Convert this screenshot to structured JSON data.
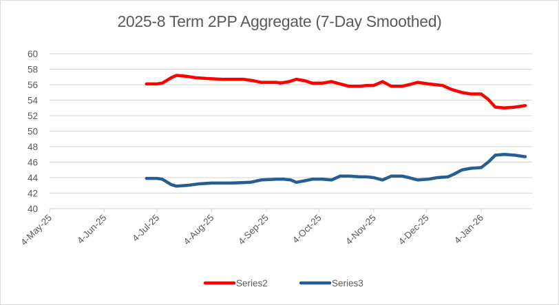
{
  "chart_data": {
    "type": "line",
    "title": "2025-8 Term 2PP Aggregate (7-Day Smoothed)",
    "xlabel": "",
    "ylabel": "",
    "ylim": [
      40,
      60
    ],
    "yticks": [
      40,
      42,
      44,
      46,
      48,
      50,
      52,
      54,
      56,
      58,
      60
    ],
    "xlim": [
      "2025-05-04",
      "2026-02-03"
    ],
    "xticks": [
      {
        "date": "2025-05-04",
        "label": "4-May-25"
      },
      {
        "date": "2025-06-04",
        "label": "4-Jun-25"
      },
      {
        "date": "2025-07-04",
        "label": "4-Jul-25"
      },
      {
        "date": "2025-08-04",
        "label": "4-Aug-25"
      },
      {
        "date": "2025-09-04",
        "label": "4-Sep-25"
      },
      {
        "date": "2025-10-04",
        "label": "4-Oct-25"
      },
      {
        "date": "2025-11-04",
        "label": "4-Nov-25"
      },
      {
        "date": "2025-12-04",
        "label": "4-Dec-25"
      },
      {
        "date": "2026-01-04",
        "label": "4-Jan-26"
      }
    ],
    "grid": true,
    "legend": "bottom",
    "series": [
      {
        "name": "Series2",
        "color": "#ff0000",
        "points": [
          [
            "2025-06-28",
            56.1
          ],
          [
            "2025-07-04",
            56.1
          ],
          [
            "2025-07-07",
            56.2
          ],
          [
            "2025-07-12",
            56.9
          ],
          [
            "2025-07-15",
            57.2
          ],
          [
            "2025-07-20",
            57.1
          ],
          [
            "2025-07-26",
            56.9
          ],
          [
            "2025-08-01",
            56.8
          ],
          [
            "2025-08-10",
            56.7
          ],
          [
            "2025-08-22",
            56.7
          ],
          [
            "2025-08-28",
            56.5
          ],
          [
            "2025-09-01",
            56.3
          ],
          [
            "2025-09-10",
            56.3
          ],
          [
            "2025-09-12",
            56.2
          ],
          [
            "2025-09-17",
            56.4
          ],
          [
            "2025-09-21",
            56.7
          ],
          [
            "2025-09-26",
            56.5
          ],
          [
            "2025-09-30",
            56.2
          ],
          [
            "2025-10-06",
            56.2
          ],
          [
            "2025-10-11",
            56.4
          ],
          [
            "2025-10-16",
            56.1
          ],
          [
            "2025-10-21",
            55.8
          ],
          [
            "2025-10-27",
            55.8
          ],
          [
            "2025-10-31",
            55.9
          ],
          [
            "2025-11-04",
            55.9
          ],
          [
            "2025-11-09",
            56.4
          ],
          [
            "2025-11-14",
            55.8
          ],
          [
            "2025-11-20",
            55.8
          ],
          [
            "2025-11-24",
            56.0
          ],
          [
            "2025-11-29",
            56.3
          ],
          [
            "2025-12-05",
            56.1
          ],
          [
            "2025-12-13",
            55.9
          ],
          [
            "2025-12-18",
            55.4
          ],
          [
            "2025-12-24",
            55.0
          ],
          [
            "2025-12-29",
            54.8
          ],
          [
            "2026-01-04",
            54.8
          ],
          [
            "2026-01-08",
            54.1
          ],
          [
            "2026-01-12",
            53.1
          ],
          [
            "2026-01-17",
            53.0
          ],
          [
            "2026-01-23",
            53.1
          ],
          [
            "2026-01-29",
            53.3
          ]
        ]
      },
      {
        "name": "Series3",
        "color": "#255e91",
        "points": [
          [
            "2025-06-28",
            43.9
          ],
          [
            "2025-07-04",
            43.9
          ],
          [
            "2025-07-07",
            43.8
          ],
          [
            "2025-07-12",
            43.1
          ],
          [
            "2025-07-15",
            42.9
          ],
          [
            "2025-07-21",
            43.0
          ],
          [
            "2025-07-28",
            43.2
          ],
          [
            "2025-08-04",
            43.3
          ],
          [
            "2025-08-15",
            43.3
          ],
          [
            "2025-08-26",
            43.4
          ],
          [
            "2025-09-01",
            43.7
          ],
          [
            "2025-09-10",
            43.8
          ],
          [
            "2025-09-14",
            43.8
          ],
          [
            "2025-09-18",
            43.7
          ],
          [
            "2025-09-21",
            43.4
          ],
          [
            "2025-09-26",
            43.6
          ],
          [
            "2025-09-30",
            43.8
          ],
          [
            "2025-10-06",
            43.8
          ],
          [
            "2025-10-11",
            43.7
          ],
          [
            "2025-10-16",
            44.2
          ],
          [
            "2025-10-21",
            44.2
          ],
          [
            "2025-10-27",
            44.1
          ],
          [
            "2025-10-31",
            44.1
          ],
          [
            "2025-11-04",
            44.0
          ],
          [
            "2025-11-09",
            43.7
          ],
          [
            "2025-11-14",
            44.2
          ],
          [
            "2025-11-20",
            44.2
          ],
          [
            "2025-11-24",
            44.0
          ],
          [
            "2025-11-29",
            43.7
          ],
          [
            "2025-12-05",
            43.8
          ],
          [
            "2025-12-10",
            44.0
          ],
          [
            "2025-12-16",
            44.1
          ],
          [
            "2025-12-20",
            44.5
          ],
          [
            "2025-12-24",
            45.0
          ],
          [
            "2025-12-29",
            45.2
          ],
          [
            "2026-01-04",
            45.3
          ],
          [
            "2026-01-08",
            46.0
          ],
          [
            "2026-01-12",
            46.9
          ],
          [
            "2026-01-17",
            47.0
          ],
          [
            "2026-01-23",
            46.9
          ],
          [
            "2026-01-29",
            46.7
          ]
        ]
      }
    ]
  }
}
